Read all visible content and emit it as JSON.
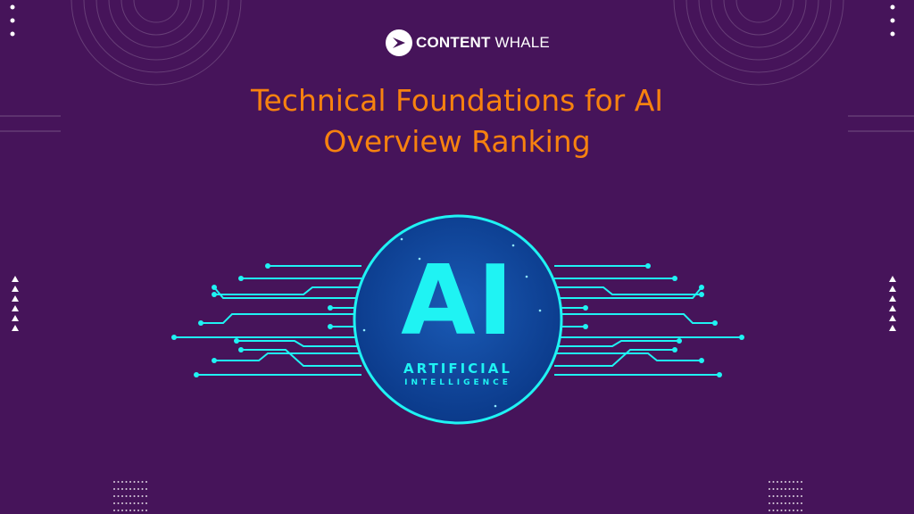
{
  "logo": {
    "brand_bold": "CONTENT",
    "brand_light": "WHALE"
  },
  "title": {
    "line1": "Technical Foundations for AI",
    "line2": "Overview Ranking"
  },
  "emblem": {
    "big": "AI",
    "line1": "ARTIFICIAL",
    "line2": "INTELLIGENCE"
  },
  "colors": {
    "background": "#46145a",
    "title": "#f7820f",
    "accent": "#1ff3f3",
    "circle": "#0d4496"
  }
}
